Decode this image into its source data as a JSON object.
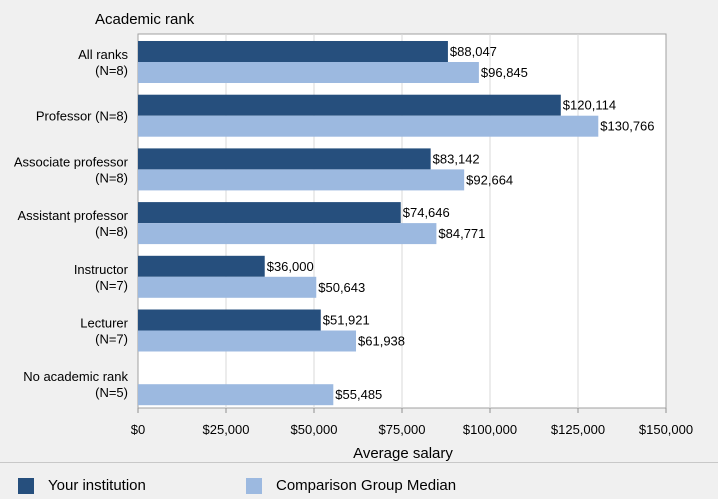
{
  "chart_data": {
    "type": "bar",
    "orientation": "horizontal",
    "title": "Academic rank",
    "xlabel": "Average salary",
    "xlim": [
      0,
      150000
    ],
    "xticks": [
      "$0",
      "$25,000",
      "$50,000",
      "$75,000",
      "$100,000",
      "$125,000",
      "$150,000"
    ],
    "grid": true,
    "categories": [
      [
        "All ranks",
        "(N=8)"
      ],
      [
        "Professor (N=8)"
      ],
      [
        "Associate professor",
        "(N=8)"
      ],
      [
        "Assistant professor",
        "(N=8)"
      ],
      [
        "Instructor",
        "(N=7)"
      ],
      [
        "Lecturer",
        "(N=7)"
      ],
      [
        "No academic rank",
        "(N=5)"
      ]
    ],
    "series": [
      {
        "name": "Your institution",
        "color": "#264f7d",
        "values": [
          88047,
          120114,
          83142,
          74646,
          36000,
          51921,
          null
        ],
        "labels": [
          "$88,047",
          "$120,114",
          "$83,142",
          "$74,646",
          "$36,000",
          "$51,921",
          ""
        ]
      },
      {
        "name": "Comparison Group Median",
        "color": "#9cb9e0",
        "values": [
          96845,
          130766,
          92664,
          84771,
          50643,
          61938,
          55485
        ],
        "labels": [
          "$96,845",
          "$130,766",
          "$92,664",
          "$84,771",
          "$50,643",
          "$61,938",
          "$55,485"
        ]
      }
    ],
    "legend_position": "bottom"
  }
}
